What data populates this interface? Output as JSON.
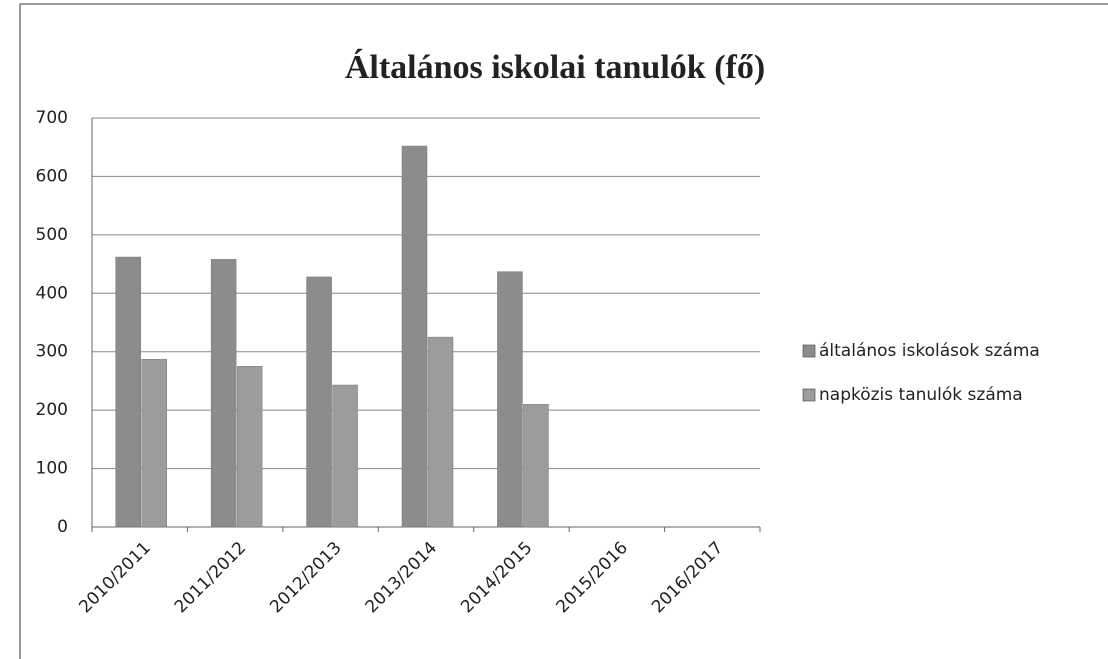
{
  "chart_data": {
    "type": "bar",
    "title": "Általános iskolai tanulók (fő)",
    "categories": [
      "2010/2011",
      "2011/2012",
      "2012/2013",
      "2013/2014",
      "2014/2015",
      "2015/2016",
      "2016/2017"
    ],
    "series": [
      {
        "name": "általános iskolások száma",
        "color": "#8c8c8c",
        "values": [
          462,
          458,
          428,
          652,
          437,
          null,
          null
        ]
      },
      {
        "name": "napközis tanulók száma",
        "color": "#9c9c9c",
        "values": [
          287,
          275,
          243,
          325,
          210,
          null,
          null
        ]
      }
    ],
    "ylim": [
      0,
      700
    ],
    "yticks": [
      0,
      100,
      200,
      300,
      400,
      500,
      600,
      700
    ],
    "grid": true,
    "legend": "right"
  }
}
